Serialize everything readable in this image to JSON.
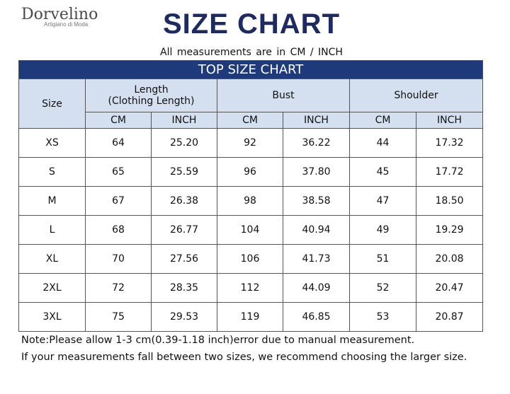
{
  "brand": {
    "name": "Dorvelino",
    "tagline": "Artigiano di Moda"
  },
  "title": "SIZE CHART",
  "subtitle": "All measurements are in CM / INCH",
  "table_title": "TOP SIZE CHART",
  "headers": {
    "size": "Size",
    "length_line1": "Length",
    "length_line2": "(Clothing Length)",
    "bust": "Bust",
    "shoulder": "Shoulder",
    "cm": "CM",
    "inch": "INCH"
  },
  "rows": [
    {
      "size": "XS",
      "length_cm": "64",
      "length_in": "25.20",
      "bust_cm": "92",
      "bust_in": "36.22",
      "shoulder_cm": "44",
      "shoulder_in": "17.32"
    },
    {
      "size": "S",
      "length_cm": "65",
      "length_in": "25.59",
      "bust_cm": "96",
      "bust_in": "37.80",
      "shoulder_cm": "45",
      "shoulder_in": "17.72"
    },
    {
      "size": "M",
      "length_cm": "67",
      "length_in": "26.38",
      "bust_cm": "98",
      "bust_in": "38.58",
      "shoulder_cm": "47",
      "shoulder_in": "18.50"
    },
    {
      "size": "L",
      "length_cm": "68",
      "length_in": "26.77",
      "bust_cm": "104",
      "bust_in": "40.94",
      "shoulder_cm": "49",
      "shoulder_in": "19.29"
    },
    {
      "size": "XL",
      "length_cm": "70",
      "length_in": "27.56",
      "bust_cm": "106",
      "bust_in": "41.73",
      "shoulder_cm": "51",
      "shoulder_in": "20.08"
    },
    {
      "size": "2XL",
      "length_cm": "72",
      "length_in": "28.35",
      "bust_cm": "112",
      "bust_in": "44.09",
      "shoulder_cm": "52",
      "shoulder_in": "20.47"
    },
    {
      "size": "3XL",
      "length_cm": "75",
      "length_in": "29.53",
      "bust_cm": "119",
      "bust_in": "46.85",
      "shoulder_cm": "53",
      "shoulder_in": "20.87"
    }
  ],
  "notes": [
    "Note:Please allow 1-3 cm(0.39-1.18 inch)error due to manual measurement.",
    "If your measurements fall between two sizes, we recommend choosing the larger size."
  ],
  "colors": {
    "title": "#1f2a5e",
    "band": "#1f3a7a",
    "header_fill": "#d4e0ef"
  }
}
